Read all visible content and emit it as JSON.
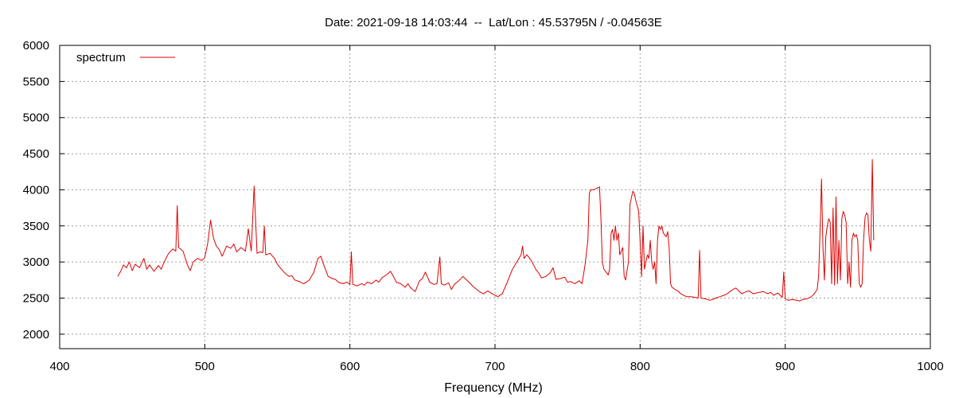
{
  "chart_data": {
    "type": "line",
    "title": "Date: 2021-09-18 14:03:44  --  Lat/Lon : 45.53795N / -0.04563E",
    "xlabel": "Frequency (MHz)",
    "ylabel": "",
    "xlim": [
      400,
      1000
    ],
    "ylim": [
      1800,
      6000
    ],
    "x_ticks": [
      400,
      500,
      600,
      700,
      800,
      900,
      1000
    ],
    "y_ticks": [
      2000,
      2500,
      3000,
      3500,
      4000,
      4500,
      5000,
      5500,
      6000
    ],
    "grid": true,
    "legend_position": "top-left",
    "color": "#dd0000",
    "series": [
      {
        "name": "spectrum",
        "points": [
          [
            440,
            2800
          ],
          [
            442,
            2870
          ],
          [
            444,
            2960
          ],
          [
            446,
            2920
          ],
          [
            448,
            3000
          ],
          [
            450,
            2880
          ],
          [
            452,
            2970
          ],
          [
            455,
            2920
          ],
          [
            458,
            3050
          ],
          [
            460,
            2900
          ],
          [
            462,
            2960
          ],
          [
            465,
            2870
          ],
          [
            468,
            2950
          ],
          [
            470,
            2900
          ],
          [
            472,
            3000
          ],
          [
            475,
            3120
          ],
          [
            478,
            3180
          ],
          [
            480,
            3150
          ],
          [
            481,
            3780
          ],
          [
            482,
            3200
          ],
          [
            485,
            3150
          ],
          [
            488,
            2960
          ],
          [
            490,
            2880
          ],
          [
            492,
            3000
          ],
          [
            495,
            3050
          ],
          [
            498,
            3020
          ],
          [
            500,
            3060
          ],
          [
            502,
            3260
          ],
          [
            504,
            3580
          ],
          [
            506,
            3330
          ],
          [
            508,
            3220
          ],
          [
            510,
            3170
          ],
          [
            512,
            3080
          ],
          [
            515,
            3220
          ],
          [
            518,
            3190
          ],
          [
            520,
            3250
          ],
          [
            522,
            3140
          ],
          [
            525,
            3200
          ],
          [
            528,
            3150
          ],
          [
            530,
            3460
          ],
          [
            532,
            3150
          ],
          [
            534,
            4050
          ],
          [
            536,
            3120
          ],
          [
            538,
            3140
          ],
          [
            540,
            3130
          ],
          [
            541,
            3500
          ],
          [
            542,
            3100
          ],
          [
            545,
            3120
          ],
          [
            548,
            3050
          ],
          [
            550,
            2970
          ],
          [
            552,
            2920
          ],
          [
            555,
            2850
          ],
          [
            558,
            2800
          ],
          [
            560,
            2810
          ],
          [
            562,
            2750
          ],
          [
            565,
            2730
          ],
          [
            568,
            2700
          ],
          [
            570,
            2720
          ],
          [
            572,
            2750
          ],
          [
            575,
            2850
          ],
          [
            578,
            3050
          ],
          [
            580,
            3080
          ],
          [
            582,
            2960
          ],
          [
            585,
            2800
          ],
          [
            588,
            2770
          ],
          [
            590,
            2760
          ],
          [
            592,
            2720
          ],
          [
            595,
            2700
          ],
          [
            598,
            2720
          ],
          [
            600,
            2690
          ],
          [
            601,
            3140
          ],
          [
            602,
            2690
          ],
          [
            605,
            2670
          ],
          [
            608,
            2700
          ],
          [
            610,
            2680
          ],
          [
            612,
            2720
          ],
          [
            615,
            2700
          ],
          [
            618,
            2750
          ],
          [
            620,
            2720
          ],
          [
            622,
            2780
          ],
          [
            625,
            2820
          ],
          [
            628,
            2870
          ],
          [
            630,
            2800
          ],
          [
            632,
            2720
          ],
          [
            635,
            2700
          ],
          [
            638,
            2650
          ],
          [
            640,
            2700
          ],
          [
            642,
            2640
          ],
          [
            645,
            2590
          ],
          [
            648,
            2740
          ],
          [
            650,
            2770
          ],
          [
            652,
            2860
          ],
          [
            655,
            2720
          ],
          [
            658,
            2690
          ],
          [
            660,
            2700
          ],
          [
            662,
            3070
          ],
          [
            663,
            2700
          ],
          [
            665,
            2680
          ],
          [
            668,
            2710
          ],
          [
            670,
            2620
          ],
          [
            672,
            2690
          ],
          [
            675,
            2740
          ],
          [
            678,
            2800
          ],
          [
            680,
            2760
          ],
          [
            682,
            2720
          ],
          [
            685,
            2660
          ],
          [
            688,
            2610
          ],
          [
            690,
            2580
          ],
          [
            692,
            2560
          ],
          [
            695,
            2600
          ],
          [
            698,
            2560
          ],
          [
            700,
            2540
          ],
          [
            702,
            2520
          ],
          [
            705,
            2560
          ],
          [
            708,
            2700
          ],
          [
            710,
            2800
          ],
          [
            712,
            2900
          ],
          [
            715,
            3000
          ],
          [
            718,
            3100
          ],
          [
            719,
            3220
          ],
          [
            720,
            3050
          ],
          [
            722,
            3100
          ],
          [
            725,
            3020
          ],
          [
            728,
            2900
          ],
          [
            730,
            2850
          ],
          [
            732,
            2780
          ],
          [
            735,
            2800
          ],
          [
            738,
            2850
          ],
          [
            740,
            2920
          ],
          [
            742,
            2760
          ],
          [
            745,
            2770
          ],
          [
            748,
            2790
          ],
          [
            750,
            2720
          ],
          [
            752,
            2730
          ],
          [
            755,
            2700
          ],
          [
            758,
            2740
          ],
          [
            760,
            2700
          ],
          [
            762,
            2950
          ],
          [
            764,
            3300
          ],
          [
            765,
            3950
          ],
          [
            766,
            4000
          ],
          [
            768,
            4000
          ],
          [
            770,
            4020
          ],
          [
            772,
            4040
          ],
          [
            773,
            3600
          ],
          [
            774,
            3000
          ],
          [
            775,
            2900
          ],
          [
            777,
            2850
          ],
          [
            778,
            2820
          ],
          [
            779,
            2900
          ],
          [
            780,
            3400
          ],
          [
            781,
            3450
          ],
          [
            782,
            3300
          ],
          [
            783,
            3500
          ],
          [
            784,
            3300
          ],
          [
            785,
            3400
          ],
          [
            786,
            3100
          ],
          [
            788,
            3200
          ],
          [
            789,
            2800
          ],
          [
            790,
            2750
          ],
          [
            791,
            2880
          ],
          [
            792,
            3000
          ],
          [
            793,
            3800
          ],
          [
            795,
            3980
          ],
          [
            796,
            3950
          ],
          [
            797,
            3850
          ],
          [
            798,
            3780
          ],
          [
            799,
            3700
          ],
          [
            800,
            3300
          ],
          [
            801,
            2800
          ],
          [
            802,
            3500
          ],
          [
            803,
            2900
          ],
          [
            804,
            3000
          ],
          [
            805,
            3100
          ],
          [
            806,
            3050
          ],
          [
            807,
            3300
          ],
          [
            808,
            3000
          ],
          [
            809,
            2900
          ],
          [
            810,
            3000
          ],
          [
            811,
            2700
          ],
          [
            812,
            3300
          ],
          [
            813,
            3500
          ],
          [
            814,
            3450
          ],
          [
            815,
            3500
          ],
          [
            816,
            3400
          ],
          [
            818,
            3350
          ],
          [
            819,
            3420
          ],
          [
            820,
            3200
          ],
          [
            821,
            2700
          ],
          [
            822,
            2650
          ],
          [
            824,
            2620
          ],
          [
            826,
            2600
          ],
          [
            828,
            2560
          ],
          [
            830,
            2540
          ],
          [
            832,
            2520
          ],
          [
            835,
            2520
          ],
          [
            838,
            2510
          ],
          [
            840,
            2500
          ],
          [
            841,
            3160
          ],
          [
            842,
            2500
          ],
          [
            845,
            2490
          ],
          [
            848,
            2470
          ],
          [
            850,
            2480
          ],
          [
            852,
            2500
          ],
          [
            855,
            2520
          ],
          [
            858,
            2540
          ],
          [
            860,
            2560
          ],
          [
            862,
            2590
          ],
          [
            864,
            2620
          ],
          [
            866,
            2640
          ],
          [
            868,
            2600
          ],
          [
            870,
            2560
          ],
          [
            872,
            2580
          ],
          [
            875,
            2600
          ],
          [
            878,
            2560
          ],
          [
            880,
            2570
          ],
          [
            882,
            2580
          ],
          [
            885,
            2590
          ],
          [
            888,
            2560
          ],
          [
            890,
            2580
          ],
          [
            892,
            2540
          ],
          [
            895,
            2570
          ],
          [
            898,
            2510
          ],
          [
            899,
            2860
          ],
          [
            900,
            2490
          ],
          [
            902,
            2470
          ],
          [
            905,
            2480
          ],
          [
            908,
            2470
          ],
          [
            910,
            2460
          ],
          [
            912,
            2480
          ],
          [
            915,
            2490
          ],
          [
            918,
            2520
          ],
          [
            920,
            2560
          ],
          [
            922,
            2620
          ],
          [
            923,
            2800
          ],
          [
            924,
            3400
          ],
          [
            925,
            4150
          ],
          [
            926,
            3200
          ],
          [
            927,
            2750
          ],
          [
            928,
            3350
          ],
          [
            929,
            3500
          ],
          [
            930,
            3600
          ],
          [
            931,
            3550
          ],
          [
            932,
            2700
          ],
          [
            933,
            3750
          ],
          [
            934,
            2680
          ],
          [
            935,
            3900
          ],
          [
            936,
            2700
          ],
          [
            937,
            3300
          ],
          [
            938,
            2750
          ],
          [
            939,
            3600
          ],
          [
            940,
            3700
          ],
          [
            941,
            3650
          ],
          [
            942,
            3550
          ],
          [
            943,
            2700
          ],
          [
            944,
            3000
          ],
          [
            945,
            2650
          ],
          [
            946,
            3300
          ],
          [
            947,
            3400
          ],
          [
            948,
            3350
          ],
          [
            949,
            3380
          ],
          [
            950,
            3300
          ],
          [
            951,
            2700
          ],
          [
            952,
            2650
          ],
          [
            953,
            2700
          ],
          [
            954,
            3300
          ],
          [
            955,
            3620
          ],
          [
            956,
            3680
          ],
          [
            957,
            3650
          ],
          [
            958,
            3300
          ],
          [
            959,
            3150
          ],
          [
            960,
            4420
          ],
          [
            961,
            3300
          ]
        ]
      }
    ]
  }
}
